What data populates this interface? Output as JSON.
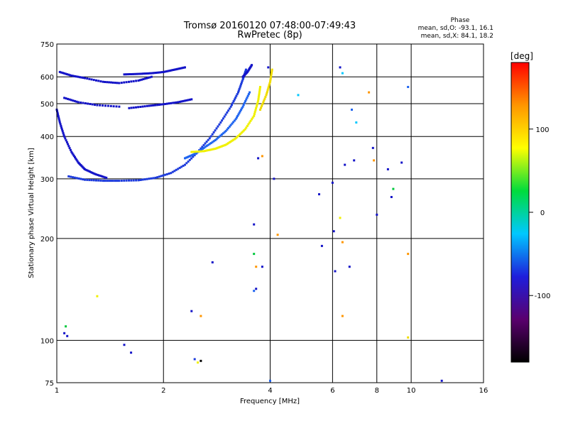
{
  "chart_data": {
    "type": "scatter",
    "title": "Tromsø 20160120 07:48:00-07:49:43",
    "subtitle": "RwPretec (8p)",
    "xlabel": "Frequency [MHz]",
    "ylabel": "Stationary phase Virtual Height [km]",
    "x_scale": "log",
    "y_scale": "log",
    "xlim": [
      1,
      16
    ],
    "ylim": [
      75,
      750
    ],
    "x_ticks": [
      1,
      2,
      4,
      6,
      8,
      10,
      16
    ],
    "y_ticks": [
      75,
      100,
      200,
      300,
      400,
      500,
      600,
      750
    ],
    "grid": true,
    "phase_stats": {
      "heading": "Phase",
      "line_o": "mean, sd,O: -93.1, 16.1",
      "line_x": "mean, sd,X:  84.1, 18.2"
    },
    "colorbar": {
      "label": "[deg]",
      "range": [
        -180,
        180
      ],
      "ticks": [
        -100,
        0,
        100
      ],
      "colors": [
        "#000000",
        "#5a006e",
        "#1e1edc",
        "#00c8ff",
        "#00dc3c",
        "#ffff00",
        "#ff9600",
        "#ff0000"
      ]
    },
    "series": [
      {
        "segments": [
          {
            "x": [
              1.08,
              1.2,
              1.35,
              1.5,
              1.7,
              1.9,
              2.1,
              2.3,
              2.5,
              2.7,
              2.9,
              3.1,
              3.25,
              3.35,
              3.42
            ],
            "y": [
              305,
              298,
              296,
              296,
              297,
              302,
              312,
              330,
              360,
              395,
              440,
              490,
              540,
              590,
              630
            ],
            "color": "#1e3cdc"
          },
          {
            "x": [
              1.0,
              1.02,
              1.05,
              1.1,
              1.15,
              1.2,
              1.28,
              1.38
            ],
            "y": [
              480,
              440,
              400,
              360,
              335,
              320,
              310,
              302
            ],
            "color": "#1414c8"
          },
          {
            "x": [
              1.02,
              1.1,
              1.2,
              1.35,
              1.5,
              1.7,
              1.85
            ],
            "y": [
              620,
              605,
              595,
              580,
              575,
              585,
              600
            ],
            "color": "#1414c8"
          },
          {
            "x": [
              1.05,
              1.15,
              1.3,
              1.5
            ],
            "y": [
              520,
              505,
              495,
              490
            ],
            "color": "#1414c8"
          },
          {
            "x": [
              1.55,
              1.7,
              1.85,
              2.0,
              2.15,
              2.3
            ],
            "y": [
              610,
              612,
              615,
              620,
              630,
              640
            ],
            "color": "#1414c8"
          },
          {
            "x": [
              1.6,
              1.8,
              2.0,
              2.2,
              2.4
            ],
            "y": [
              485,
              492,
              498,
              505,
              515
            ],
            "color": "#1414c8"
          },
          {
            "x": [
              2.3,
              2.45,
              2.6,
              2.8,
              3.0,
              3.2,
              3.35,
              3.5
            ],
            "y": [
              345,
              355,
              370,
              390,
              415,
              450,
              490,
              540
            ],
            "color": "#1e64f0"
          },
          {
            "x": [
              2.4,
              2.6,
              2.8,
              3.0,
              3.2,
              3.4,
              3.6,
              3.7,
              3.75
            ],
            "y": [
              360,
              362,
              368,
              378,
              395,
              420,
              460,
              510,
              560
            ],
            "color": "#f0f000"
          },
          {
            "x": [
              3.75,
              3.9,
              4.0,
              4.05
            ],
            "y": [
              480,
              530,
              580,
              630
            ],
            "color": "#f0dc00"
          },
          {
            "x": [
              3.35,
              3.45,
              3.55
            ],
            "y": [
              600,
              620,
              650
            ],
            "color": "#1414c8"
          }
        ],
        "points": [
          {
            "x": 1.06,
            "y": 110,
            "color": "#00c83c"
          },
          {
            "x": 1.05,
            "y": 105,
            "color": "#1414c8"
          },
          {
            "x": 1.07,
            "y": 103,
            "color": "#1414c8"
          },
          {
            "x": 1.3,
            "y": 135,
            "color": "#f0f000"
          },
          {
            "x": 1.55,
            "y": 97,
            "color": "#1414c8"
          },
          {
            "x": 1.62,
            "y": 92,
            "color": "#1414c8"
          },
          {
            "x": 2.4,
            "y": 122,
            "color": "#1414c8"
          },
          {
            "x": 2.55,
            "y": 118,
            "color": "#ff9600"
          },
          {
            "x": 2.45,
            "y": 88,
            "color": "#1e3cdc"
          },
          {
            "x": 2.5,
            "y": 86,
            "color": "#f0f000"
          },
          {
            "x": 2.55,
            "y": 87,
            "color": "#000000"
          },
          {
            "x": 2.75,
            "y": 170,
            "color": "#1414c8"
          },
          {
            "x": 3.6,
            "y": 220,
            "color": "#1414c8"
          },
          {
            "x": 3.6,
            "y": 180,
            "color": "#00c83c"
          },
          {
            "x": 3.65,
            "y": 165,
            "color": "#ff9600"
          },
          {
            "x": 3.8,
            "y": 165,
            "color": "#1414c8"
          },
          {
            "x": 3.6,
            "y": 140,
            "color": "#1e64f0"
          },
          {
            "x": 3.65,
            "y": 142,
            "color": "#1414c8"
          },
          {
            "x": 3.7,
            "y": 345,
            "color": "#1414c8"
          },
          {
            "x": 3.8,
            "y": 350,
            "color": "#ff9600"
          },
          {
            "x": 4.1,
            "y": 300,
            "color": "#1414c8"
          },
          {
            "x": 4.2,
            "y": 205,
            "color": "#ff9600"
          },
          {
            "x": 4.0,
            "y": 76,
            "color": "#1e64f0"
          },
          {
            "x": 5.5,
            "y": 270,
            "color": "#1414c8"
          },
          {
            "x": 5.6,
            "y": 190,
            "color": "#1414c8"
          },
          {
            "x": 6.0,
            "y": 292,
            "color": "#1414c8"
          },
          {
            "x": 6.05,
            "y": 210,
            "color": "#1414c8"
          },
          {
            "x": 6.1,
            "y": 160,
            "color": "#1414c8"
          },
          {
            "x": 6.3,
            "y": 640,
            "color": "#1414c8"
          },
          {
            "x": 6.4,
            "y": 615,
            "color": "#00c8ff"
          },
          {
            "x": 6.3,
            "y": 230,
            "color": "#f0f000"
          },
          {
            "x": 6.4,
            "y": 195,
            "color": "#ff9600"
          },
          {
            "x": 6.4,
            "y": 118,
            "color": "#ff9600"
          },
          {
            "x": 6.5,
            "y": 330,
            "color": "#1414c8"
          },
          {
            "x": 6.7,
            "y": 165,
            "color": "#1414c8"
          },
          {
            "x": 6.8,
            "y": 480,
            "color": "#1e64f0"
          },
          {
            "x": 6.9,
            "y": 340,
            "color": "#1414c8"
          },
          {
            "x": 7.0,
            "y": 440,
            "color": "#00c8ff"
          },
          {
            "x": 7.8,
            "y": 370,
            "color": "#1414c8"
          },
          {
            "x": 7.85,
            "y": 340,
            "color": "#ff9600"
          },
          {
            "x": 8.0,
            "y": 235,
            "color": "#1414c8"
          },
          {
            "x": 8.6,
            "y": 320,
            "color": "#1414c8"
          },
          {
            "x": 8.8,
            "y": 265,
            "color": "#1414c8"
          },
          {
            "x": 8.9,
            "y": 280,
            "color": "#00c83c"
          },
          {
            "x": 9.4,
            "y": 335,
            "color": "#1414c8"
          },
          {
            "x": 9.8,
            "y": 560,
            "color": "#1e64f0"
          },
          {
            "x": 9.8,
            "y": 180,
            "color": "#ff9600"
          },
          {
            "x": 9.8,
            "y": 102,
            "color": "#f0dc00"
          },
          {
            "x": 12.2,
            "y": 76,
            "color": "#1414c8"
          },
          {
            "x": 4.8,
            "y": 530,
            "color": "#00c8ff"
          },
          {
            "x": 3.95,
            "y": 640,
            "color": "#1414c8"
          },
          {
            "x": 7.6,
            "y": 540,
            "color": "#ff9600"
          }
        ]
      }
    ]
  }
}
